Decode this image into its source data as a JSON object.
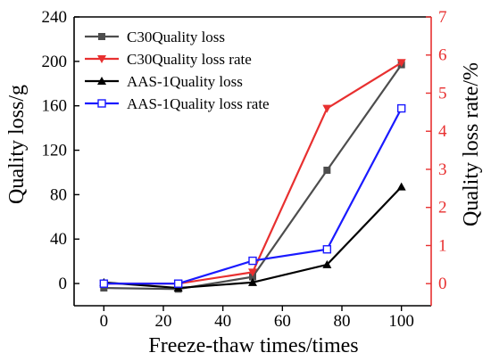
{
  "chart_data": {
    "type": "line",
    "x": [
      0,
      25,
      50,
      75,
      100
    ],
    "xlabel": "Freeze-thaw times/times",
    "xlim": [
      -10,
      110
    ],
    "xticks": [
      0,
      20,
      40,
      60,
      80,
      100
    ],
    "ylabel": "Quality loss/g",
    "ylim": [
      -20,
      240
    ],
    "yticks": [
      0,
      40,
      80,
      120,
      160,
      200,
      240
    ],
    "y2label": "Quality loss rate/%",
    "y2lim": [
      -0.58,
      7
    ],
    "y2ticks": [
      0,
      1,
      2,
      3,
      4,
      5,
      6,
      7
    ],
    "grid": false,
    "legend_position": "top-left",
    "series": [
      {
        "name": "C30Quality loss",
        "axis": "left",
        "color": "#4d4d4d",
        "marker": "square",
        "values": [
          -4,
          -5,
          6,
          102,
          197
        ]
      },
      {
        "name": "C30Quality loss rate",
        "axis": "right",
        "color": "#e83030",
        "marker": "triangle-down",
        "values": [
          0,
          0,
          0.3,
          4.6,
          5.8
        ]
      },
      {
        "name": "AAS-1Quality loss",
        "axis": "left",
        "color": "#000000",
        "marker": "triangle-up",
        "values": [
          1,
          -4,
          1,
          17,
          87
        ]
      },
      {
        "name": "AAS-1Quality loss rate",
        "axis": "right",
        "color": "#1a1aff",
        "marker": "square-open",
        "values": [
          0,
          0,
          0.6,
          0.9,
          4.6
        ]
      }
    ]
  }
}
